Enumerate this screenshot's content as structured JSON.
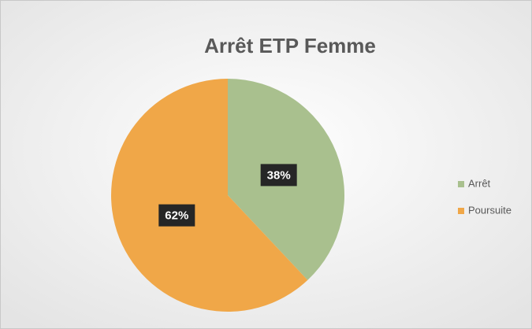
{
  "chart_data": {
    "type": "pie",
    "title": "Arrêt ETP Femme",
    "categories": [
      "Arrêt",
      "Poursuite"
    ],
    "values": [
      38,
      62
    ],
    "value_labels": [
      "38%",
      "62%"
    ],
    "colors": [
      "#a9c08e",
      "#f0a748"
    ],
    "legend": "right"
  }
}
